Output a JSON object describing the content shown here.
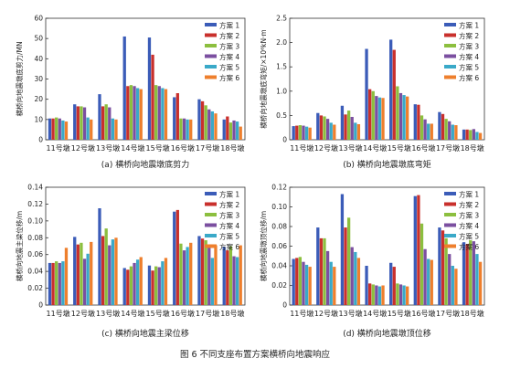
{
  "figure_caption": "图 6   不同支座布置方案横桥向地震响应",
  "series_colors": [
    "#3b5cb8",
    "#c9302c",
    "#8cbf3f",
    "#7b4fa0",
    "#3aa9c8",
    "#ee7f2d"
  ],
  "chart_data": [
    {
      "type": "bar",
      "caption": "(a) 横桥向地震墩底剪力",
      "ylabel": "横桥向地震墩底剪力/MN",
      "ylim": [
        0,
        60
      ],
      "yticks": [
        0,
        10,
        20,
        30,
        40,
        50,
        60
      ],
      "ytick_labels": [
        "0",
        "10",
        "20",
        "30",
        "40",
        "50",
        "60"
      ],
      "categories": [
        "11号墩",
        "12号墩",
        "13号墩",
        "14号墩",
        "15号墩",
        "16号墩",
        "17号墩",
        "18号墩"
      ],
      "legend_position": "top-right",
      "series": [
        {
          "name": "方案 1",
          "values": [
            10.5,
            17.5,
            22.5,
            51.0,
            50.5,
            21.0,
            20.0,
            10.0
          ]
        },
        {
          "name": "方案 2",
          "values": [
            10.5,
            16.5,
            16.5,
            26.5,
            42.0,
            23.0,
            19.0,
            11.5
          ]
        },
        {
          "name": "方案 3",
          "values": [
            11.0,
            16.5,
            17.5,
            27.0,
            27.0,
            10.5,
            17.0,
            8.5
          ]
        },
        {
          "name": "方案 4",
          "values": [
            10.5,
            16.0,
            16.0,
            26.5,
            26.5,
            10.5,
            15.0,
            9.5
          ]
        },
        {
          "name": "方案 5",
          "values": [
            9.5,
            11.0,
            10.5,
            25.5,
            25.5,
            10.0,
            14.0,
            9.0
          ]
        },
        {
          "name": "方案 6",
          "values": [
            9.0,
            10.0,
            10.0,
            25.0,
            25.0,
            10.0,
            13.0,
            6.5
          ]
        }
      ]
    },
    {
      "type": "bar",
      "caption": "(b) 横桥向地震墩底弯矩",
      "ylabel": "横桥向地震墩底弯矩/×10⁶kN·m",
      "ylim": [
        0,
        2.5
      ],
      "yticks": [
        0,
        0.5,
        1.0,
        1.5,
        2.0,
        2.5
      ],
      "ytick_labels": [
        "0",
        "0.5",
        "1.0",
        "1.5",
        "2.0",
        "2.5"
      ],
      "categories": [
        "11号墩",
        "12号墩",
        "13号墩",
        "14号墩",
        "15号墩",
        "16号墩",
        "17号墩",
        "18号墩"
      ],
      "legend_position": "top-right",
      "series": [
        {
          "name": "方案 1",
          "values": [
            0.28,
            0.55,
            0.7,
            1.87,
            2.06,
            0.73,
            0.57,
            0.21
          ]
        },
        {
          "name": "方案 2",
          "values": [
            0.29,
            0.5,
            0.52,
            1.04,
            1.85,
            0.72,
            0.53,
            0.21
          ]
        },
        {
          "name": "方案 3",
          "values": [
            0.3,
            0.48,
            0.6,
            1.0,
            1.1,
            0.5,
            0.43,
            0.2
          ]
        },
        {
          "name": "方案 4",
          "values": [
            0.29,
            0.43,
            0.47,
            0.9,
            0.96,
            0.42,
            0.38,
            0.22
          ]
        },
        {
          "name": "方案 5",
          "values": [
            0.27,
            0.35,
            0.35,
            0.87,
            0.92,
            0.33,
            0.31,
            0.16
          ]
        },
        {
          "name": "方案 6",
          "values": [
            0.25,
            0.31,
            0.32,
            0.86,
            0.89,
            0.33,
            0.3,
            0.14
          ]
        }
      ]
    },
    {
      "type": "bar",
      "caption": "(c) 横桥向地震主梁位移",
      "ylabel": "横桥向地震主梁位移/m",
      "ylim": [
        0,
        0.14
      ],
      "yticks": [
        0,
        0.02,
        0.04,
        0.06,
        0.08,
        0.1,
        0.12,
        0.14
      ],
      "ytick_labels": [
        "0",
        "0.02",
        "0.04",
        "0.06",
        "0.08",
        "0.10",
        "0.12",
        "0.14"
      ],
      "categories": [
        "11号墩",
        "12号墩",
        "13号墩",
        "14号墩",
        "15号墩",
        "16号墩",
        "17号墩",
        "18号墩"
      ],
      "legend_position": "top-right",
      "series": [
        {
          "name": "方案 1",
          "values": [
            0.05,
            0.081,
            0.115,
            0.044,
            0.047,
            0.111,
            0.082,
            0.069
          ]
        },
        {
          "name": "方案 2",
          "values": [
            0.05,
            0.072,
            0.082,
            0.042,
            0.041,
            0.113,
            0.079,
            0.065
          ]
        },
        {
          "name": "方案 3",
          "values": [
            0.052,
            0.074,
            0.091,
            0.046,
            0.046,
            0.073,
            0.077,
            0.07
          ]
        },
        {
          "name": "方案 4",
          "values": [
            0.05,
            0.055,
            0.071,
            0.05,
            0.045,
            0.065,
            0.07,
            0.058
          ]
        },
        {
          "name": "方案 5",
          "values": [
            0.052,
            0.061,
            0.078,
            0.054,
            0.052,
            0.069,
            0.056,
            0.057
          ]
        },
        {
          "name": "方案 6",
          "values": [
            0.068,
            0.075,
            0.08,
            0.057,
            0.056,
            0.074,
            0.071,
            0.071
          ]
        }
      ]
    },
    {
      "type": "bar",
      "caption": "(d) 横桥向地震墩顶位移",
      "ylabel": "横桥向地震墩顶位移/m",
      "ylim": [
        0,
        0.12
      ],
      "yticks": [
        0,
        0.02,
        0.04,
        0.06,
        0.08,
        0.1,
        0.12
      ],
      "ytick_labels": [
        "0",
        "0.02",
        "0.04",
        "0.06",
        "0.08",
        "0.10",
        "0.12"
      ],
      "categories": [
        "11号墩",
        "12号墩",
        "13号墩",
        "14号墩",
        "15号墩",
        "16号墩",
        "17号墩",
        "18号墩"
      ],
      "legend_position": "top-right",
      "series": [
        {
          "name": "方案 1",
          "values": [
            0.047,
            0.079,
            0.113,
            0.04,
            0.043,
            0.111,
            0.079,
            0.064
          ]
        },
        {
          "name": "方案 2",
          "values": [
            0.048,
            0.068,
            0.079,
            0.022,
            0.039,
            0.112,
            0.076,
            0.062
          ]
        },
        {
          "name": "方案 3",
          "values": [
            0.049,
            0.068,
            0.089,
            0.021,
            0.022,
            0.083,
            0.068,
            0.066
          ]
        },
        {
          "name": "方案 4",
          "values": [
            0.044,
            0.055,
            0.059,
            0.02,
            0.021,
            0.057,
            0.052,
            0.065
          ]
        },
        {
          "name": "方案 5",
          "values": [
            0.041,
            0.044,
            0.054,
            0.019,
            0.02,
            0.047,
            0.04,
            0.052
          ]
        },
        {
          "name": "方案 6",
          "values": [
            0.039,
            0.039,
            0.048,
            0.02,
            0.019,
            0.046,
            0.037,
            0.044
          ]
        }
      ]
    }
  ]
}
